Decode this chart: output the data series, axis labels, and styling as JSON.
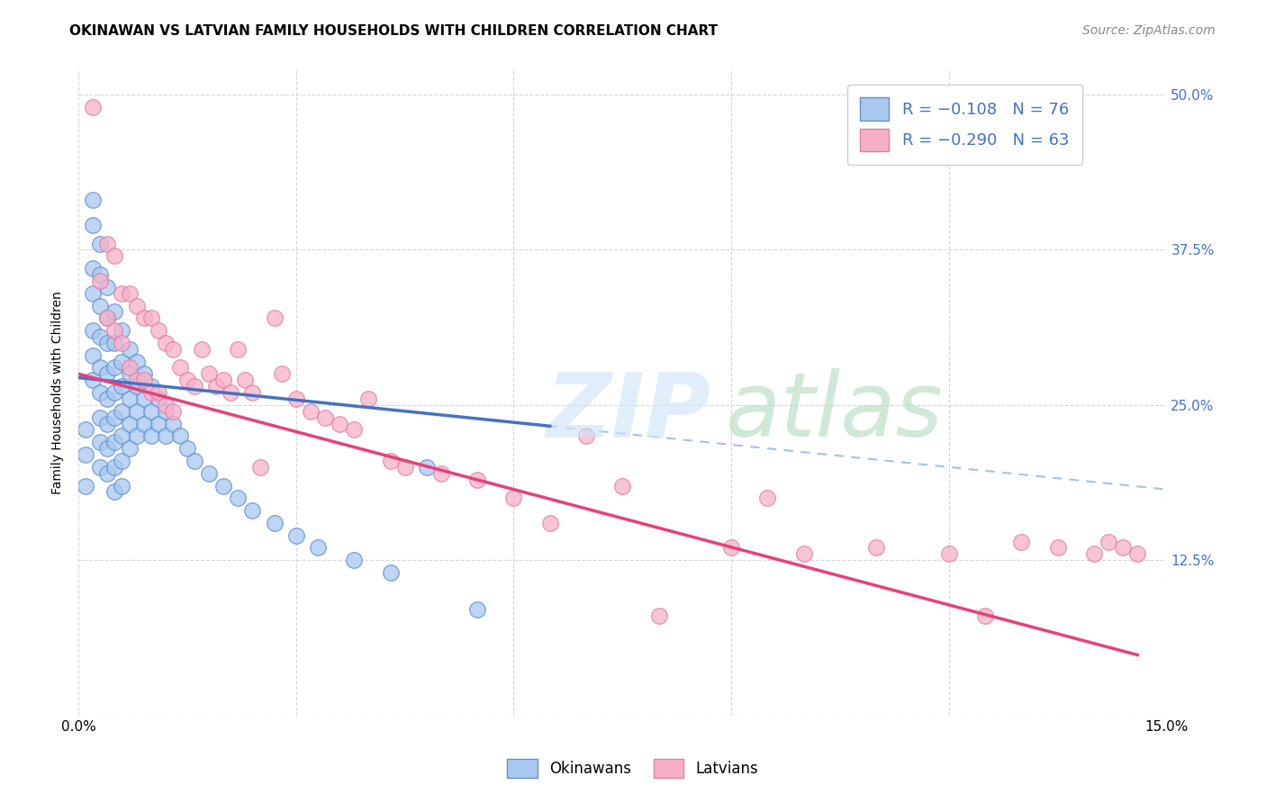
{
  "title": "OKINAWAN VS LATVIAN FAMILY HOUSEHOLDS WITH CHILDREN CORRELATION CHART",
  "source": "Source: ZipAtlas.com",
  "ylabel": "Family Households with Children",
  "legend_okinawan": "R = −0.108   N = 76",
  "legend_latvian": "R = −0.290   N = 63",
  "legend_label_1": "Okinawans",
  "legend_label_2": "Latvians",
  "x_min": 0.0,
  "x_max": 0.15,
  "y_min": 0.0,
  "y_max": 0.52,
  "x_ticks": [
    0.0,
    0.03,
    0.06,
    0.09,
    0.12,
    0.15
  ],
  "x_tick_labels": [
    "0.0%",
    "",
    "",
    "",
    "",
    "15.0%"
  ],
  "y_ticks": [
    0.0,
    0.125,
    0.25,
    0.375,
    0.5
  ],
  "y_tick_labels_right": [
    "",
    "12.5%",
    "25.0%",
    "37.5%",
    "50.0%"
  ],
  "color_okinawan_fill": "#a8c8f0",
  "color_okinawan_edge": "#6090d0",
  "color_latvian_fill": "#f8b0c8",
  "color_latvian_edge": "#e080a0",
  "color_okinawan_line": "#4472c4",
  "color_latvian_line": "#e8407a",
  "color_dashed": "#90b8e8",
  "background_color": "#ffffff",
  "grid_color": "#cccccc",
  "right_tick_color": "#4472c4",
  "title_fontsize": 11,
  "source_fontsize": 10,
  "axis_label_fontsize": 10,
  "tick_fontsize": 11,
  "legend_fontsize": 13,
  "ok_intercept": 0.272,
  "ok_slope": -0.6,
  "lat_intercept": 0.275,
  "lat_slope": -1.55,
  "ok_x": [
    0.001,
    0.001,
    0.001,
    0.002,
    0.002,
    0.002,
    0.002,
    0.002,
    0.002,
    0.002,
    0.003,
    0.003,
    0.003,
    0.003,
    0.003,
    0.003,
    0.003,
    0.003,
    0.003,
    0.004,
    0.004,
    0.004,
    0.004,
    0.004,
    0.004,
    0.004,
    0.004,
    0.005,
    0.005,
    0.005,
    0.005,
    0.005,
    0.005,
    0.005,
    0.005,
    0.006,
    0.006,
    0.006,
    0.006,
    0.006,
    0.006,
    0.006,
    0.007,
    0.007,
    0.007,
    0.007,
    0.007,
    0.008,
    0.008,
    0.008,
    0.008,
    0.009,
    0.009,
    0.009,
    0.01,
    0.01,
    0.01,
    0.011,
    0.011,
    0.012,
    0.012,
    0.013,
    0.014,
    0.015,
    0.016,
    0.018,
    0.02,
    0.022,
    0.024,
    0.027,
    0.03,
    0.033,
    0.038,
    0.043,
    0.048,
    0.055
  ],
  "ok_y": [
    0.21,
    0.185,
    0.23,
    0.395,
    0.415,
    0.36,
    0.34,
    0.31,
    0.29,
    0.27,
    0.38,
    0.355,
    0.33,
    0.305,
    0.28,
    0.26,
    0.24,
    0.22,
    0.2,
    0.345,
    0.32,
    0.3,
    0.275,
    0.255,
    0.235,
    0.215,
    0.195,
    0.325,
    0.3,
    0.28,
    0.26,
    0.24,
    0.22,
    0.2,
    0.18,
    0.31,
    0.285,
    0.265,
    0.245,
    0.225,
    0.205,
    0.185,
    0.295,
    0.275,
    0.255,
    0.235,
    0.215,
    0.285,
    0.265,
    0.245,
    0.225,
    0.275,
    0.255,
    0.235,
    0.265,
    0.245,
    0.225,
    0.255,
    0.235,
    0.245,
    0.225,
    0.235,
    0.225,
    0.215,
    0.205,
    0.195,
    0.185,
    0.175,
    0.165,
    0.155,
    0.145,
    0.135,
    0.125,
    0.115,
    0.2,
    0.085
  ],
  "lat_x": [
    0.002,
    0.003,
    0.004,
    0.004,
    0.005,
    0.005,
    0.006,
    0.006,
    0.007,
    0.007,
    0.008,
    0.008,
    0.009,
    0.009,
    0.01,
    0.01,
    0.011,
    0.011,
    0.012,
    0.012,
    0.013,
    0.013,
    0.014,
    0.015,
    0.016,
    0.017,
    0.018,
    0.019,
    0.02,
    0.021,
    0.022,
    0.023,
    0.024,
    0.025,
    0.027,
    0.028,
    0.03,
    0.032,
    0.034,
    0.036,
    0.038,
    0.04,
    0.043,
    0.045,
    0.05,
    0.055,
    0.06,
    0.065,
    0.07,
    0.075,
    0.08,
    0.09,
    0.095,
    0.1,
    0.11,
    0.12,
    0.125,
    0.13,
    0.135,
    0.14,
    0.142,
    0.144,
    0.146
  ],
  "lat_y": [
    0.49,
    0.35,
    0.38,
    0.32,
    0.37,
    0.31,
    0.34,
    0.3,
    0.34,
    0.28,
    0.33,
    0.27,
    0.32,
    0.27,
    0.32,
    0.26,
    0.31,
    0.26,
    0.3,
    0.25,
    0.295,
    0.245,
    0.28,
    0.27,
    0.265,
    0.295,
    0.275,
    0.265,
    0.27,
    0.26,
    0.295,
    0.27,
    0.26,
    0.2,
    0.32,
    0.275,
    0.255,
    0.245,
    0.24,
    0.235,
    0.23,
    0.255,
    0.205,
    0.2,
    0.195,
    0.19,
    0.175,
    0.155,
    0.225,
    0.185,
    0.08,
    0.135,
    0.175,
    0.13,
    0.135,
    0.13,
    0.08,
    0.14,
    0.135,
    0.13,
    0.14,
    0.135,
    0.13
  ]
}
